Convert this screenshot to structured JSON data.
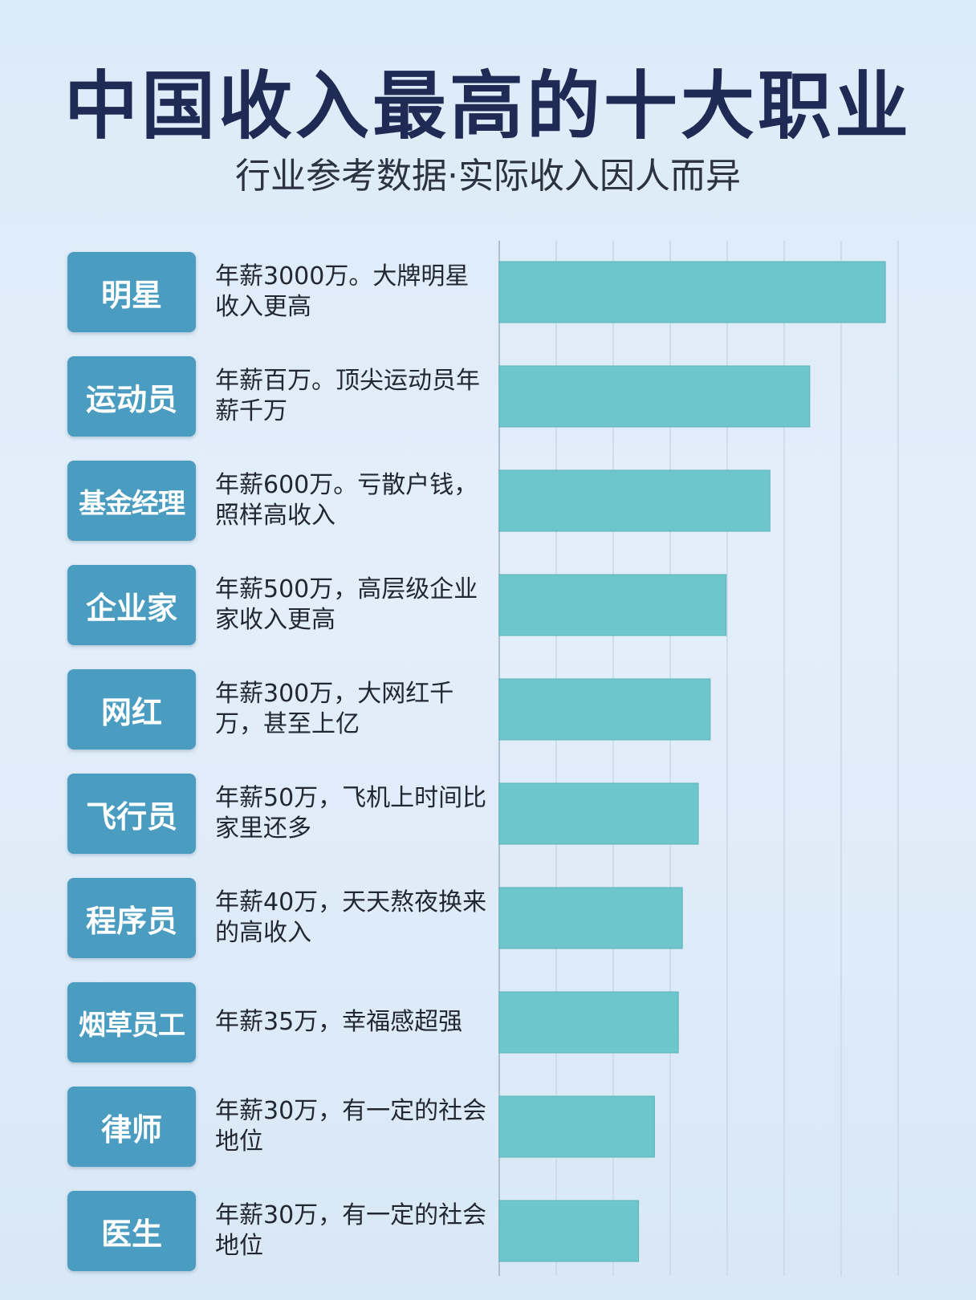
{
  "title": "中国收入最高的十大职业",
  "subtitle": "行业参考数据·实际收入因人而异",
  "colors": {
    "bar": "#6cc6cc",
    "label_bg": "#4a9cc0",
    "title": "#1f2b55",
    "grid": "#c9d6e4"
  },
  "chart_data": {
    "type": "bar",
    "orientation": "horizontal",
    "categories": [
      "明星",
      "运动员",
      "基金经理",
      "企业家",
      "网红",
      "飞行员",
      "程序员",
      "烟草员工",
      "律师",
      "医生"
    ],
    "descriptions": [
      "年薪3000万。大牌明星收入更高",
      "年薪百万。顶尖运动员年薪千万",
      "年薪600万。亏散户钱，照样高收入",
      "年薪500万，高层级企业家收入更高",
      "年薪300万，大网红千万，甚至上亿",
      "年薪50万，飞机上时间比家里还多",
      "年薪40万，天天熬夜换来的高收入",
      "年薪35万，幸福感超强",
      "年薪30万，有一定的社会地位",
      "年薪30万，有一定的社会地位"
    ],
    "bar_lengths": [
      0.97,
      0.78,
      0.68,
      0.57,
      0.53,
      0.5,
      0.46,
      0.45,
      0.39,
      0.35
    ],
    "grid": true
  }
}
